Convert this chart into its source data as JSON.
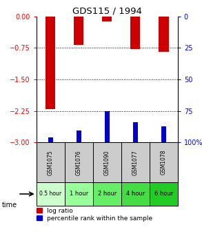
{
  "title": "GDS115 / 1994",
  "samples": [
    "GSM1075",
    "GSM1076",
    "GSM1090",
    "GSM1077",
    "GSM1078"
  ],
  "time_labels": [
    "0.5 hour",
    "1 hour",
    "2 hour",
    "4 hour",
    "6 hour"
  ],
  "time_colors": [
    "#ccffcc",
    "#99ff99",
    "#66ee66",
    "#44dd44",
    "#22cc22"
  ],
  "log_ratios": [
    -2.2,
    -0.68,
    -0.13,
    -0.78,
    -0.84
  ],
  "percentile_values_left": [
    -2.88,
    -2.72,
    -2.25,
    -2.52,
    -2.62
  ],
  "ylim_left": [
    -3,
    0
  ],
  "ylim_right": [
    0,
    100
  ],
  "yticks_left": [
    0,
    -0.75,
    -1.5,
    -2.25,
    -3
  ],
  "yticks_right": [
    100,
    75,
    50,
    25,
    0
  ],
  "bar_color_red": "#cc0000",
  "bar_color_blue": "#0000cc",
  "bar_width": 0.35,
  "blue_bar_width": 0.18,
  "bg_color": "#ffffff",
  "sample_bg": "#cccccc",
  "legend_red": "log ratio",
  "legend_blue": "percentile rank within the sample"
}
